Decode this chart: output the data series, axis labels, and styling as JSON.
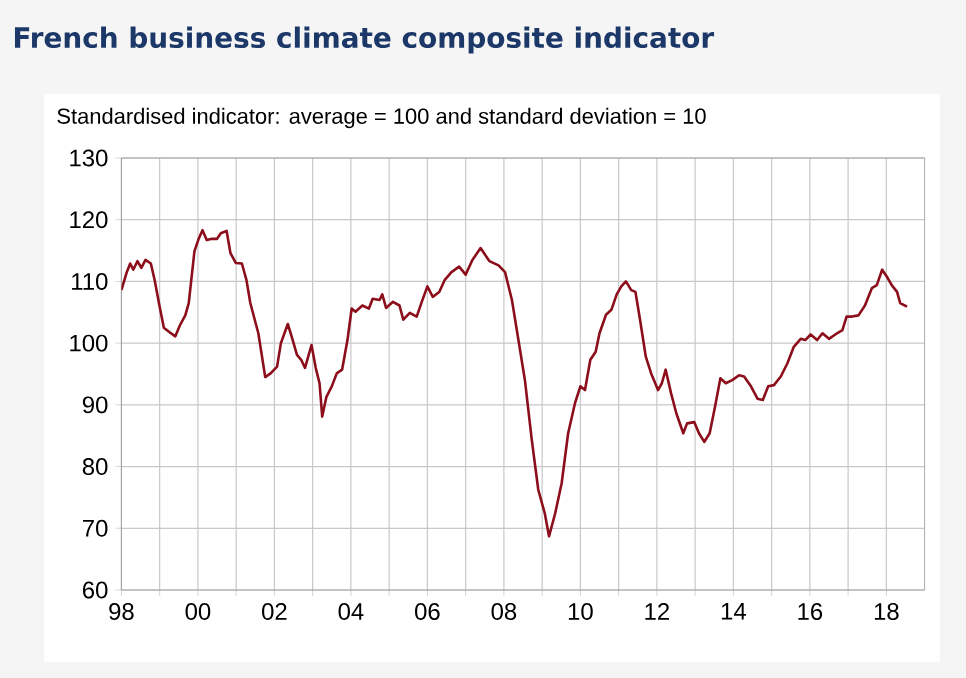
{
  "chart_data": {
    "type": "line",
    "title": "French business climate composite indicator",
    "subtitle": "Standardised indicator: average = 100 and standard deviation = 10",
    "x": [
      1998.0,
      1998.14,
      1998.23,
      1998.31,
      1998.42,
      1998.52,
      1998.63,
      1998.77,
      1998.87,
      1999.0,
      1999.11,
      1999.25,
      1999.41,
      1999.53,
      1999.67,
      1999.76,
      1999.91,
      2000.02,
      2000.12,
      2000.23,
      2000.37,
      2000.5,
      2000.6,
      2000.75,
      2000.85,
      2000.99,
      2001.15,
      2001.27,
      2001.37,
      2001.58,
      2001.76,
      2001.9,
      2002.07,
      2002.17,
      2002.35,
      2002.45,
      2002.59,
      2002.7,
      2002.8,
      2002.97,
      2003.08,
      2003.18,
      2003.25,
      2003.36,
      2003.5,
      2003.63,
      2003.77,
      2003.91,
      2004.02,
      2004.12,
      2004.3,
      2004.47,
      2004.57,
      2004.75,
      2004.82,
      2004.92,
      2005.1,
      2005.27,
      2005.37,
      2005.54,
      2005.72,
      2005.86,
      2006.0,
      2006.14,
      2006.31,
      2006.45,
      2006.63,
      2006.83,
      2007.0,
      2007.18,
      2007.39,
      2007.62,
      2007.86,
      2008.03,
      2008.21,
      2008.38,
      2008.55,
      2008.73,
      2008.9,
      2009.07,
      2009.18,
      2009.34,
      2009.51,
      2009.68,
      2009.86,
      2010.0,
      2010.12,
      2010.26,
      2010.4,
      2010.5,
      2010.67,
      2010.81,
      2010.95,
      2011.07,
      2011.19,
      2011.33,
      2011.44,
      2011.56,
      2011.71,
      2011.85,
      2012.03,
      2012.13,
      2012.23,
      2012.37,
      2012.51,
      2012.69,
      2012.79,
      2012.98,
      2013.1,
      2013.24,
      2013.38,
      2013.52,
      2013.66,
      2013.8,
      2013.97,
      2014.15,
      2014.28,
      2014.46,
      2014.63,
      2014.77,
      2014.91,
      2015.06,
      2015.24,
      2015.41,
      2015.58,
      2015.76,
      2015.88,
      2016.02,
      2016.19,
      2016.33,
      2016.5,
      2016.71,
      2016.85,
      2016.96,
      2017.1,
      2017.27,
      2017.44,
      2017.62,
      2017.75,
      2017.89,
      2018.01,
      2018.14,
      2018.28,
      2018.36,
      2018.54
    ],
    "series": [
      {
        "color": "#8b0e1a",
        "values": [
          108.6,
          111.5,
          112.9,
          111.9,
          113.3,
          112.2,
          113.5,
          112.9,
          110.2,
          105.9,
          102.5,
          101.8,
          101.1,
          102.9,
          104.5,
          106.5,
          114.9,
          116.9,
          118.3,
          116.7,
          116.9,
          116.9,
          117.8,
          118.2,
          114.6,
          113.0,
          112.9,
          110.2,
          106.5,
          101.6,
          94.5,
          95.1,
          96.2,
          100.0,
          103.1,
          101.1,
          98.1,
          97.3,
          96.0,
          99.7,
          96.0,
          93.5,
          88.1,
          91.3,
          93.0,
          95.1,
          95.7,
          100.5,
          105.6,
          105.1,
          106.1,
          105.6,
          107.2,
          107.0,
          107.9,
          105.7,
          106.7,
          106.1,
          103.8,
          104.9,
          104.3,
          106.8,
          109.2,
          107.5,
          108.3,
          110.2,
          111.5,
          112.4,
          111.1,
          113.5,
          115.4,
          113.3,
          112.6,
          111.5,
          107.0,
          100.5,
          94.0,
          84.3,
          76.2,
          72.4,
          68.7,
          72.4,
          77.3,
          85.4,
          90.3,
          93.0,
          92.4,
          97.3,
          98.6,
          101.6,
          104.6,
          105.4,
          107.9,
          109.2,
          110.0,
          108.6,
          108.3,
          103.8,
          97.8,
          95.1,
          92.4,
          93.5,
          95.7,
          91.9,
          88.6,
          85.4,
          87.0,
          87.2,
          85.4,
          84.0,
          85.4,
          89.7,
          94.3,
          93.5,
          94.0,
          94.8,
          94.6,
          93.0,
          91.0,
          90.8,
          93.0,
          93.2,
          94.6,
          96.7,
          99.4,
          100.7,
          100.5,
          101.4,
          100.5,
          101.6,
          100.7,
          101.6,
          102.1,
          104.3,
          104.3,
          104.5,
          106.1,
          108.9,
          109.4,
          111.9,
          110.8,
          109.4,
          108.3,
          106.5,
          105.9
        ]
      }
    ],
    "xlim": [
      1998,
      2019
    ],
    "ylim": [
      60,
      130
    ],
    "xticks": [
      {
        "value": 1998,
        "label": "98"
      },
      {
        "value": 1999,
        "label": null
      },
      {
        "value": 2000,
        "label": "00"
      },
      {
        "value": 2001,
        "label": null
      },
      {
        "value": 2002,
        "label": "02"
      },
      {
        "value": 2003,
        "label": null
      },
      {
        "value": 2004,
        "label": "04"
      },
      {
        "value": 2005,
        "label": null
      },
      {
        "value": 2006,
        "label": "06"
      },
      {
        "value": 2007,
        "label": null
      },
      {
        "value": 2008,
        "label": "08"
      },
      {
        "value": 2009,
        "label": null
      },
      {
        "value": 2010,
        "label": "10"
      },
      {
        "value": 2011,
        "label": null
      },
      {
        "value": 2012,
        "label": "12"
      },
      {
        "value": 2013,
        "label": null
      },
      {
        "value": 2014,
        "label": "14"
      },
      {
        "value": 2015,
        "label": null
      },
      {
        "value": 2016,
        "label": "16"
      },
      {
        "value": 2017,
        "label": null
      },
      {
        "value": 2018,
        "label": "18"
      }
    ],
    "yticks": [
      60,
      70,
      80,
      90,
      100,
      110,
      120,
      130
    ],
    "grid": true,
    "marker": "none",
    "line_style": "solid"
  }
}
